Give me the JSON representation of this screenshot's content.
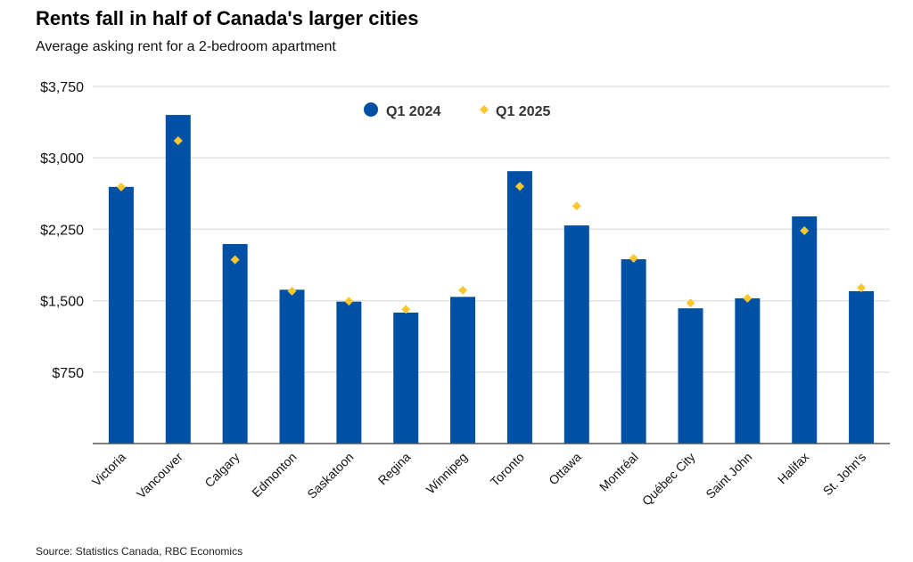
{
  "chart_data": {
    "type": "bar",
    "title": "Rents fall in half of Canada's larger cities",
    "subtitle": "Average asking rent for a 2-bedroom apartment",
    "source": "Source: Statistics Canada, RBC Economics",
    "categories": [
      "Victoria",
      "Vancouver",
      "Calgary",
      "Edmonton",
      "Saskatoon",
      "Regina",
      "Winnipeg",
      "Toronto",
      "Ottawa",
      "Montréal",
      "Québec City",
      "Saint John",
      "Halifax",
      "St. John's"
    ],
    "series": [
      {
        "name": "Q1 2024",
        "mark": "bar",
        "color": "#0051a5",
        "values": [
          2695,
          3450,
          2095,
          1615,
          1490,
          1375,
          1540,
          2860,
          2290,
          1935,
          1420,
          1525,
          2385,
          1600
        ]
      },
      {
        "name": "Q1 2025",
        "mark": "diamond",
        "color": "#fdc82f",
        "values": [
          2695,
          3180,
          1930,
          1600,
          1495,
          1410,
          1610,
          2700,
          2495,
          1945,
          1475,
          1525,
          2235,
          1635
        ]
      }
    ],
    "yticks": [
      750,
      1500,
      2250,
      3000,
      3750
    ],
    "ytick_labels": [
      "$750",
      "$1,500",
      "$2,250",
      "$3,000",
      "$3,750"
    ],
    "ylim": [
      0,
      3750
    ],
    "grid": true,
    "legend": "top-center"
  }
}
